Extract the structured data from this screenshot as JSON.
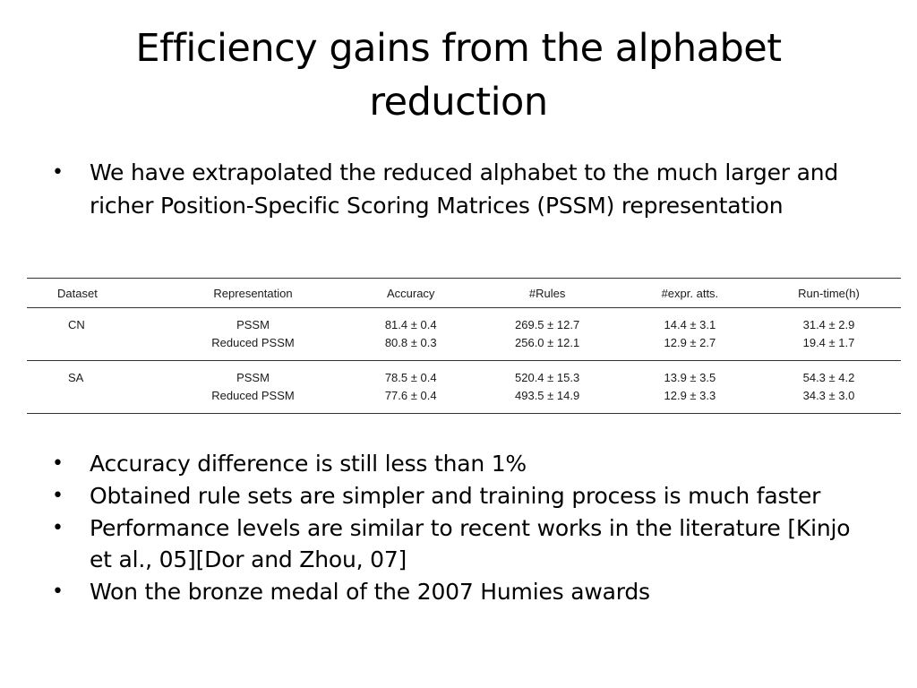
{
  "slide": {
    "title": "Efficiency gains from the alphabet reduction",
    "bullets_top": [
      "We have extrapolated the reduced alphabet to the much larger and richer Position-Specific Scoring Matrices (PSSM) representation"
    ],
    "bullets_bottom": [
      "Accuracy difference is still less than 1%",
      "Obtained rule sets are simpler and training process is much faster",
      "Performance levels are similar to recent works in the literature [Kinjo et al., 05][Dor and Zhou, 07]",
      "Won the bronze medal of the 2007 Humies awards"
    ]
  },
  "table": {
    "headers": [
      "Dataset",
      "Representation",
      "Accuracy",
      "#Rules",
      "#expr. atts.",
      "Run-time(h)"
    ],
    "groups": [
      {
        "dataset": "CN",
        "rows": [
          [
            "PSSM",
            "81.4 ± 0.4",
            "269.5 ± 12.7",
            "14.4 ± 3.1",
            "31.4 ± 2.9"
          ],
          [
            "Reduced PSSM",
            "80.8 ± 0.3",
            "256.0 ± 12.1",
            "12.9 ± 2.7",
            "19.4 ± 1.7"
          ]
        ]
      },
      {
        "dataset": "SA",
        "rows": [
          [
            "PSSM",
            "78.5 ± 0.4",
            "520.4 ± 15.3",
            "13.9 ± 3.5",
            "54.3 ± 4.2"
          ],
          [
            "Reduced PSSM",
            "77.6 ± 0.4",
            "493.5 ± 14.9",
            "12.9 ± 3.3",
            "34.3 ± 3.0"
          ]
        ]
      }
    ]
  }
}
